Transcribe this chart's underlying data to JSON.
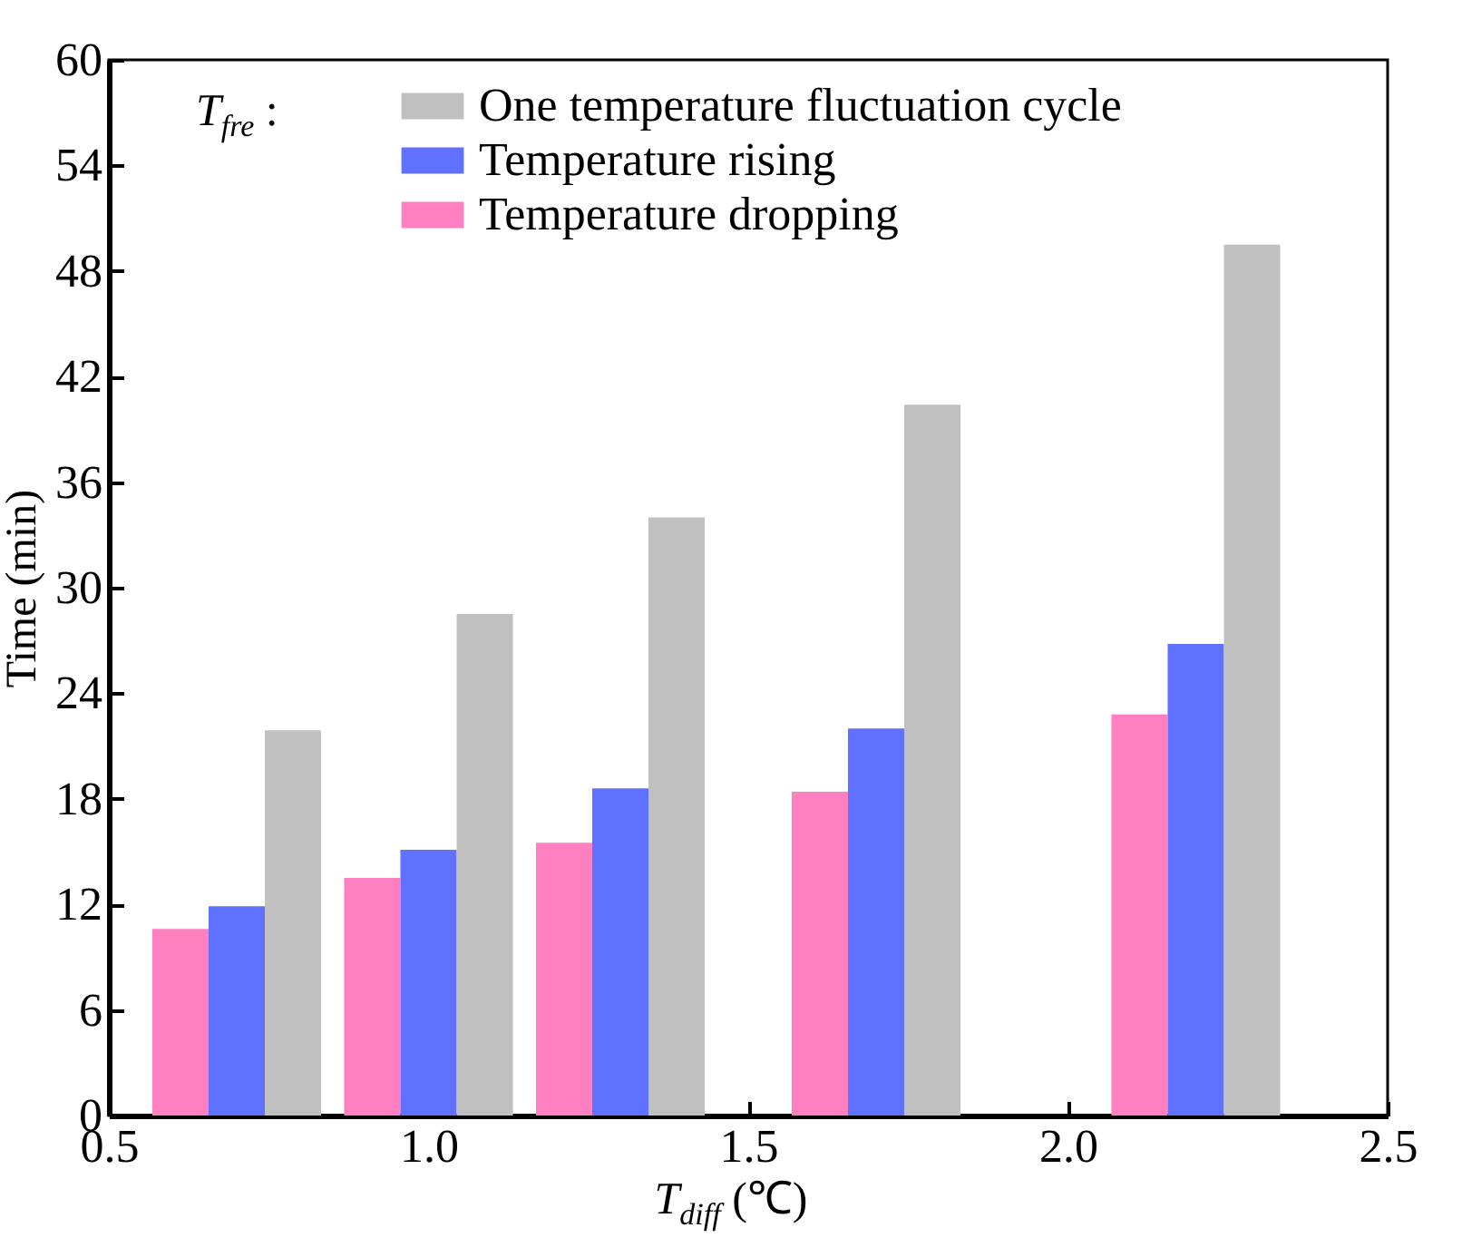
{
  "chart_data": {
    "type": "bar",
    "xlabel": "T$_{diff}$ (℃)",
    "ylabel": "Time (min)",
    "x": [
      0.7,
      1.0,
      1.3,
      1.7,
      2.2
    ],
    "series": [
      {
        "name": "Temperature dropping",
        "color": "#ff80c0",
        "values": [
          10.6,
          13.5,
          15.5,
          18.4,
          22.8
        ]
      },
      {
        "name": "Temperature rising",
        "color": "#6070ff",
        "values": [
          11.9,
          15.1,
          18.6,
          22.0,
          26.8
        ]
      },
      {
        "name": "One temperature fluctuation cycle",
        "color": "#c0c0c0",
        "values": [
          21.9,
          28.5,
          34.0,
          40.4,
          49.5
        ]
      }
    ],
    "xlim": [
      0.5,
      2.5
    ],
    "xticks": [
      {
        "value": 0.5,
        "label": "0.5"
      },
      {
        "value": 1,
        "label": "1.0"
      },
      {
        "value": 1.5,
        "label": "1.5"
      },
      {
        "value": 2,
        "label": "2.0"
      },
      {
        "value": 2.5,
        "label": "2.5"
      }
    ],
    "ylim": [
      0,
      60
    ],
    "yticks": [
      0,
      6,
      12,
      18,
      24,
      30,
      36,
      42,
      48,
      54,
      60
    ],
    "legend": "top",
    "legend_title": "T$_{fre}$ :"
  }
}
